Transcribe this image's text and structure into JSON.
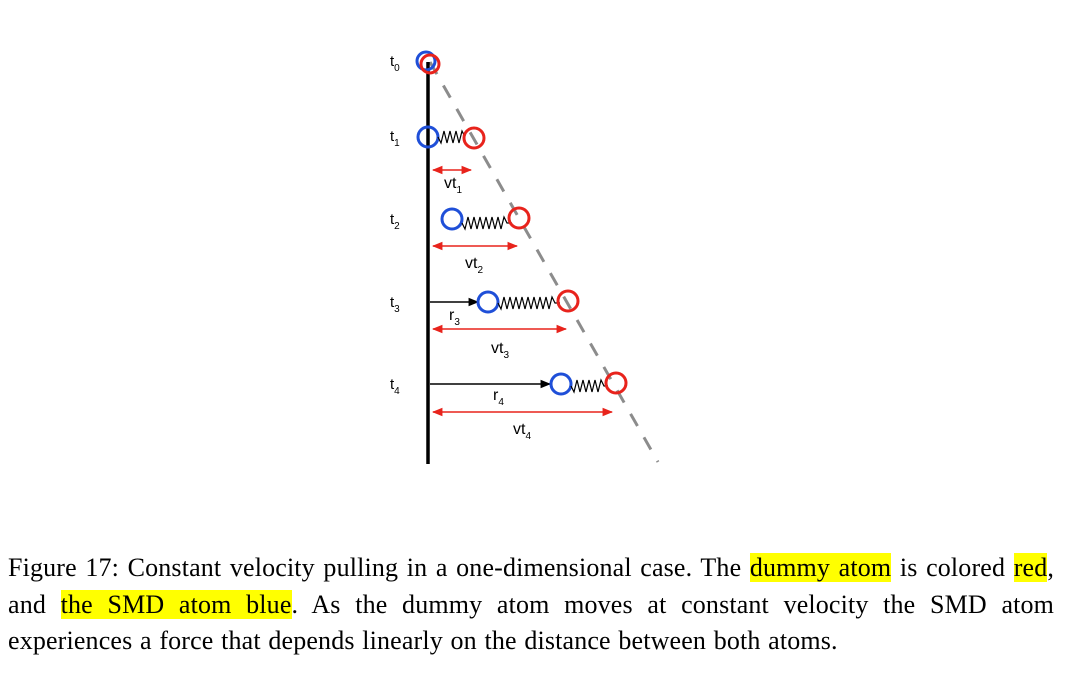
{
  "diagram": {
    "time_labels": [
      {
        "base": "t",
        "sub": "0"
      },
      {
        "base": "t",
        "sub": "1"
      },
      {
        "base": "t",
        "sub": "2"
      },
      {
        "base": "t",
        "sub": "3"
      },
      {
        "base": "t",
        "sub": "4"
      }
    ],
    "displacement_labels": [
      {
        "base": "vt",
        "sub": "1"
      },
      {
        "base": "vt",
        "sub": "2"
      },
      {
        "base": "vt",
        "sub": "3"
      },
      {
        "base": "vt",
        "sub": "4"
      }
    ],
    "position_labels": [
      {
        "base": "r",
        "sub": "3"
      },
      {
        "base": "r",
        "sub": "4"
      }
    ],
    "colors": {
      "dummy_atom": "#e8231c",
      "smd_atom": "#1f4fd8",
      "arrow": "#e8231c",
      "dashed_line": "#8c8c8c",
      "highlight": "#ffff00"
    }
  },
  "caption": {
    "prefix": "Figure 17: Constant velocity pulling in a one-dimensional case. The ",
    "hl1": "dummy atom",
    "mid1": " is colored ",
    "hl2": "red",
    "mid2": ", and ",
    "hl3": "the SMD atom blue",
    "suffix": ". As the dummy atom moves at constant velocity the SMD atom experiences a force that depends linearly on the distance between both atoms."
  }
}
